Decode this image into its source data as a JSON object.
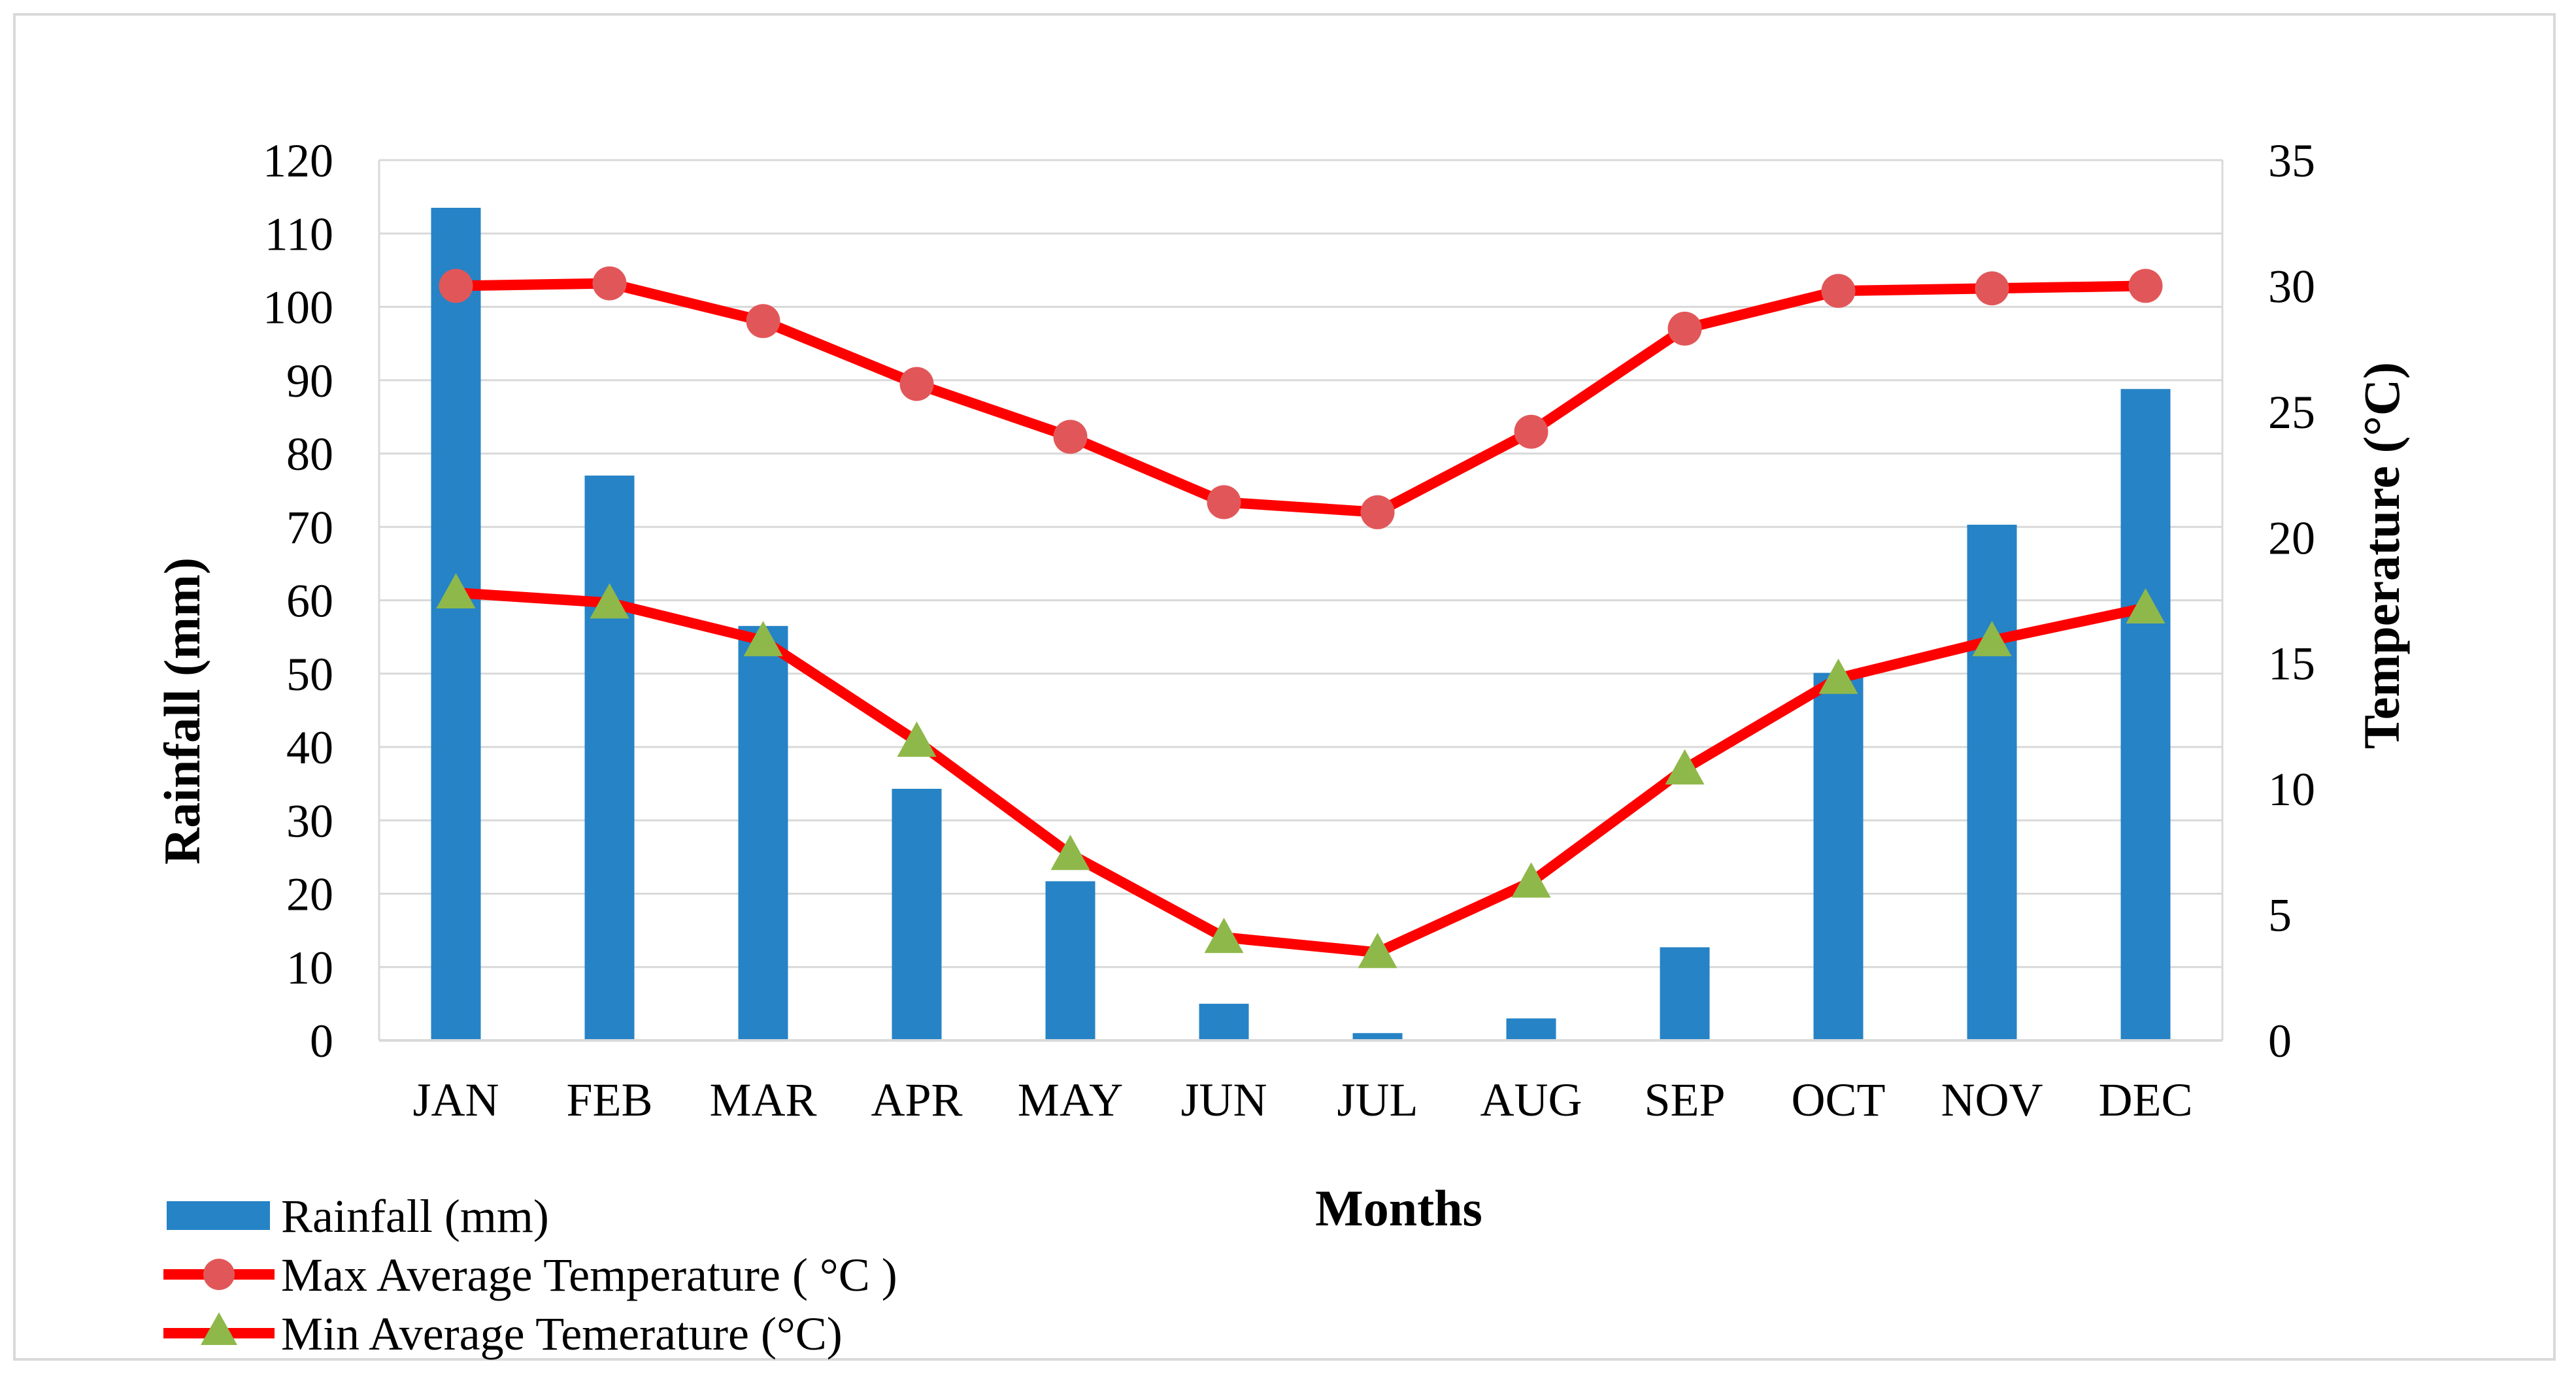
{
  "chart_data": {
    "type": "bar+line",
    "categories": [
      "JAN",
      "FEB",
      "MAR",
      "APR",
      "MAY",
      "JUN",
      "JUL",
      "AUG",
      "SEP",
      "OCT",
      "NOV",
      "DEC"
    ],
    "xlabel": "Months",
    "ylabel_left": "Rainfall (mm)",
    "ylabel_right": "Temperature (°C)",
    "ylim_left": [
      0,
      120
    ],
    "yticks_left": [
      0,
      10,
      20,
      30,
      40,
      50,
      60,
      70,
      80,
      90,
      100,
      110,
      120
    ],
    "ylim_right": [
      0,
      35
    ],
    "yticks_right": [
      0,
      5,
      10,
      15,
      20,
      25,
      30,
      35
    ],
    "grid": true,
    "legend_position": "bottom-left",
    "series": [
      {
        "name": "Rainfall (mm)",
        "kind": "bar",
        "axis": "left",
        "color": "#2683c6",
        "values": [
          113.5,
          77,
          56.5,
          34.3,
          21.7,
          5,
          1,
          3,
          12.7,
          50.1,
          70.3,
          88.8
        ]
      },
      {
        "name": "Max Average Temperature ( °C )",
        "kind": "line",
        "axis": "right",
        "color": "#ff0000",
        "marker": "circle",
        "marker_color": "#e15759",
        "values": [
          30.0,
          30.1,
          28.6,
          26.1,
          24.0,
          21.4,
          21.0,
          24.2,
          28.3,
          29.8,
          29.9,
          30.0
        ]
      },
      {
        "name": "Min Average Temerature (°C)",
        "kind": "line",
        "axis": "right",
        "color": "#ff0000",
        "marker": "triangle",
        "marker_color": "#8fb84a",
        "values": [
          17.8,
          17.4,
          15.9,
          11.9,
          7.4,
          4.1,
          3.5,
          6.3,
          10.8,
          14.4,
          15.9,
          17.2
        ]
      }
    ]
  }
}
